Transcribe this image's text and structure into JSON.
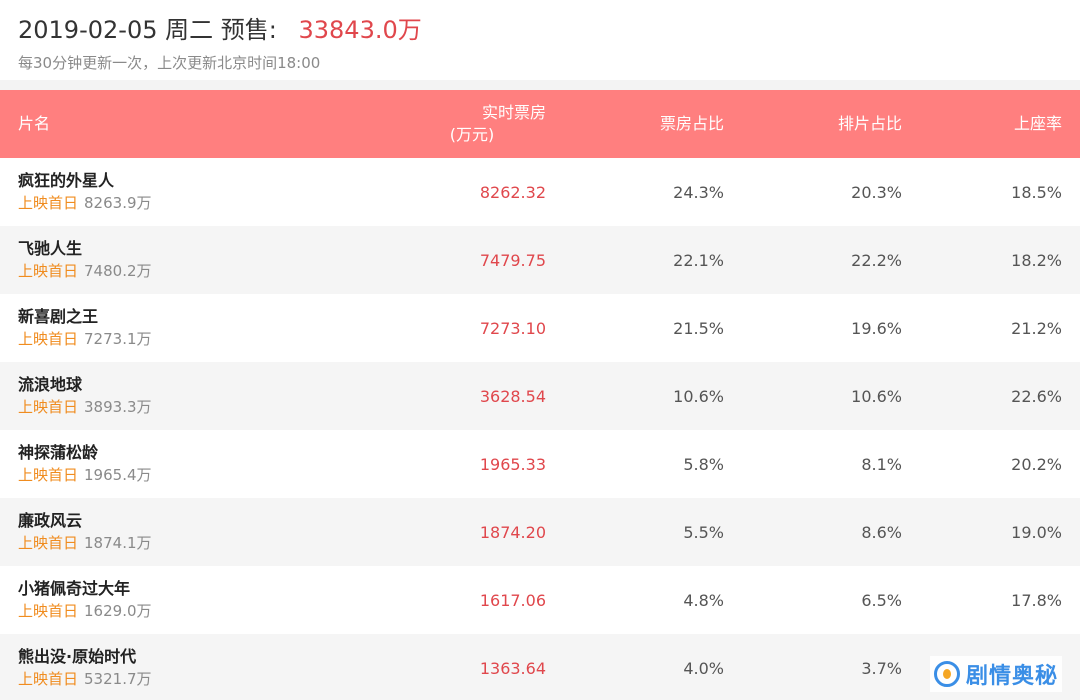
{
  "header": {
    "date": "2019-02-05",
    "weekday": "周二",
    "presale_label": "预售:",
    "presale_value": "33843.0万",
    "update_note": "每30分钟更新一次，上次更新北京时间18:00"
  },
  "table": {
    "columns": {
      "name": "片名",
      "boxoffice_line1": "实时票房",
      "boxoffice_line2": "(万元)",
      "share": "票房占比",
      "screenings": "排片占比",
      "occupancy": "上座率"
    },
    "rows": [
      {
        "title": "疯狂的外星人",
        "tag": "上映首日",
        "total": "8263.9万",
        "boxoffice": "8262.32",
        "share": "24.3%",
        "screenings": "20.3%",
        "occupancy": "18.5%"
      },
      {
        "title": "飞驰人生",
        "tag": "上映首日",
        "total": "7480.2万",
        "boxoffice": "7479.75",
        "share": "22.1%",
        "screenings": "22.2%",
        "occupancy": "18.2%"
      },
      {
        "title": "新喜剧之王",
        "tag": "上映首日",
        "total": "7273.1万",
        "boxoffice": "7273.10",
        "share": "21.5%",
        "screenings": "19.6%",
        "occupancy": "21.2%"
      },
      {
        "title": "流浪地球",
        "tag": "上映首日",
        "total": "3893.3万",
        "boxoffice": "3628.54",
        "share": "10.6%",
        "screenings": "10.6%",
        "occupancy": "22.6%"
      },
      {
        "title": "神探蒲松龄",
        "tag": "上映首日",
        "total": "1965.4万",
        "boxoffice": "1965.33",
        "share": "5.8%",
        "screenings": "8.1%",
        "occupancy": "20.2%"
      },
      {
        "title": "廉政风云",
        "tag": "上映首日",
        "total": "1874.1万",
        "boxoffice": "1874.20",
        "share": "5.5%",
        "screenings": "8.6%",
        "occupancy": "19.0%"
      },
      {
        "title": "小猪佩奇过大年",
        "tag": "上映首日",
        "total": "1629.0万",
        "boxoffice": "1617.06",
        "share": "4.8%",
        "screenings": "6.5%",
        "occupancy": "17.8%"
      },
      {
        "title": "熊出没·原始时代",
        "tag": "上映首日",
        "total": "5321.7万",
        "boxoffice": "1363.64",
        "share": "4.0%",
        "screenings": "3.7%",
        "occupancy": ""
      }
    ]
  },
  "watermark": {
    "icon": "swirl-logo-icon",
    "text": "剧情奥秘"
  },
  "colors": {
    "header_bg": "#ff7f7f",
    "accent_red": "#e0474c",
    "tag_orange": "#f08c1f"
  }
}
